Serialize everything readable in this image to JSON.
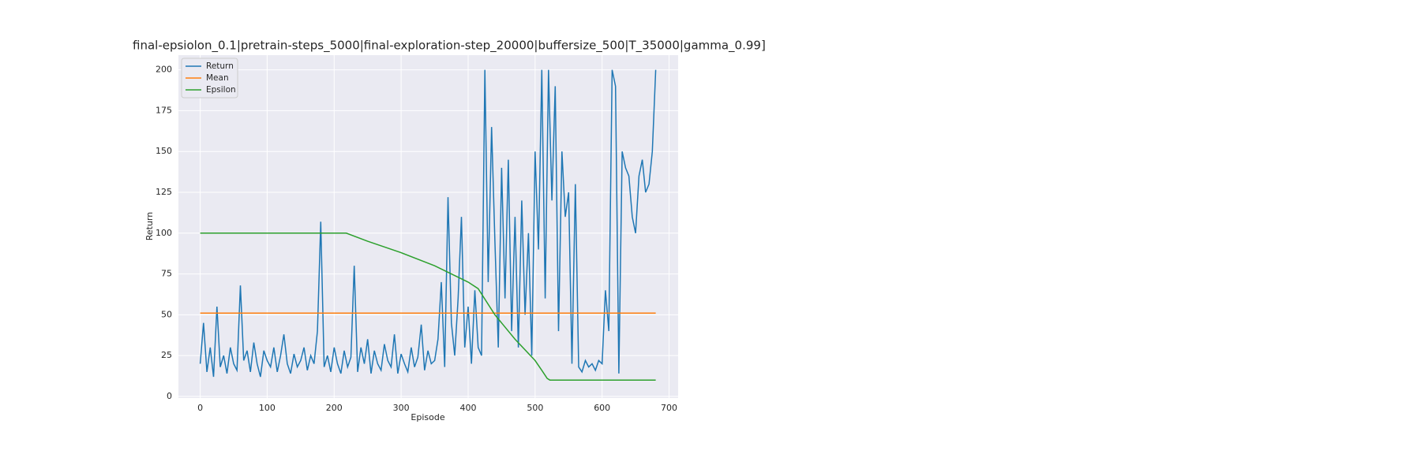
{
  "chart_data": {
    "type": "line",
    "title": "final-epsiolon_0.1|pretrain-steps_5000|final-exploration-step_20000|buffersize_500|T_35000|gamma_0.99]",
    "x_label": "Episode",
    "y_label": "Return",
    "xlim": [
      -32.5,
      713.5
    ],
    "ylim": [
      -1,
      209
    ],
    "xticks": [
      0,
      100,
      200,
      300,
      400,
      500,
      600,
      700
    ],
    "yticks": [
      0,
      25,
      50,
      75,
      100,
      125,
      150,
      175,
      200
    ],
    "grid": true,
    "legend": "upper left",
    "series": [
      {
        "name": "Return",
        "color": "#1f77b4",
        "x": [
          0,
          5,
          10,
          15,
          20,
          25,
          30,
          35,
          40,
          45,
          50,
          55,
          60,
          65,
          70,
          75,
          80,
          85,
          90,
          95,
          100,
          105,
          110,
          115,
          120,
          125,
          130,
          135,
          140,
          145,
          150,
          155,
          160,
          165,
          170,
          175,
          180,
          185,
          190,
          195,
          200,
          205,
          210,
          215,
          220,
          225,
          230,
          235,
          240,
          245,
          250,
          255,
          260,
          265,
          270,
          275,
          280,
          285,
          290,
          295,
          300,
          305,
          310,
          315,
          320,
          325,
          330,
          335,
          340,
          345,
          350,
          355,
          360,
          365,
          370,
          375,
          380,
          385,
          390,
          395,
          400,
          405,
          410,
          415,
          420,
          425,
          430,
          435,
          440,
          445,
          450,
          455,
          460,
          465,
          470,
          475,
          480,
          485,
          490,
          495,
          500,
          505,
          510,
          515,
          520,
          525,
          530,
          535,
          540,
          545,
          550,
          555,
          560,
          565,
          570,
          575,
          580,
          585,
          590,
          595,
          600,
          605,
          610,
          615,
          620,
          625,
          630,
          635,
          640,
          645,
          650,
          655,
          660,
          665,
          670,
          675,
          680
        ],
        "values": [
          20,
          45,
          15,
          30,
          12,
          55,
          18,
          25,
          14,
          30,
          20,
          16,
          68,
          22,
          28,
          15,
          33,
          20,
          12,
          28,
          22,
          18,
          30,
          15,
          25,
          38,
          20,
          14,
          26,
          18,
          22,
          30,
          16,
          25,
          20,
          40,
          107,
          18,
          25,
          15,
          30,
          20,
          14,
          28,
          18,
          24,
          80,
          15,
          30,
          20,
          35,
          14,
          28,
          20,
          16,
          32,
          22,
          18,
          38,
          14,
          26,
          20,
          15,
          30,
          18,
          24,
          44,
          16,
          28,
          20,
          22,
          35,
          70,
          18,
          122,
          45,
          25,
          60,
          110,
          30,
          55,
          20,
          65,
          30,
          25,
          200,
          70,
          165,
          95,
          30,
          140,
          60,
          145,
          40,
          110,
          30,
          120,
          50,
          100,
          25,
          150,
          90,
          200,
          60,
          200,
          120,
          190,
          40,
          150,
          110,
          125,
          20,
          130,
          18,
          15,
          22,
          18,
          20,
          16,
          22,
          20,
          65,
          40,
          200,
          190,
          14,
          150,
          140,
          135,
          110,
          100,
          135,
          145,
          125,
          130,
          150,
          200
        ]
      },
      {
        "name": "Mean",
        "color": "#ff7f0e",
        "x": [
          0,
          680
        ],
        "values": [
          51,
          51
        ]
      },
      {
        "name": "Epsilon",
        "color": "#2ca02c",
        "x": [
          0,
          218,
          250,
          300,
          350,
          400,
          415,
          440,
          470,
          500,
          510,
          518,
          522,
          680
        ],
        "values": [
          100,
          100,
          95,
          88,
          80,
          70,
          66,
          50,
          35,
          22,
          16,
          11,
          10,
          10
        ]
      }
    ]
  }
}
